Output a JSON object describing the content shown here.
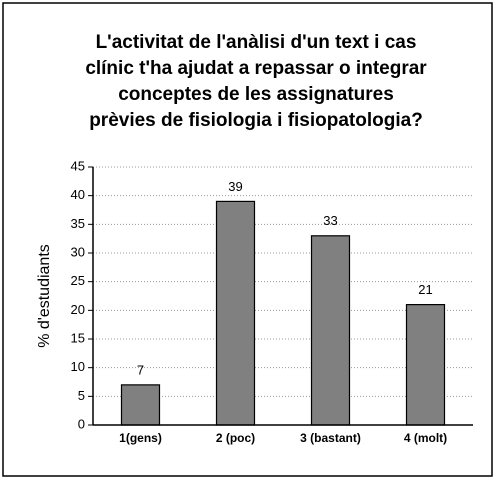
{
  "chart_data": {
    "type": "bar",
    "title": [
      "L'activitat de l'anàlisi d'un text i cas",
      "clínic t'ha ajudat a repassar o integrar",
      "conceptes de les assignatures",
      "prèvies de fisiologia i fisiopatologia?"
    ],
    "y_label": "% d'estudiants",
    "categories": [
      "1(gens)",
      "2 (poc)",
      "3 (bastant)",
      "4 (molt)"
    ],
    "values": [
      7,
      39,
      33,
      21
    ],
    "color": "#808080",
    "ylim": [
      0,
      45
    ],
    "yticks": [
      0,
      5,
      10,
      15,
      20,
      25,
      30,
      35,
      40,
      45
    ],
    "grid": true
  }
}
